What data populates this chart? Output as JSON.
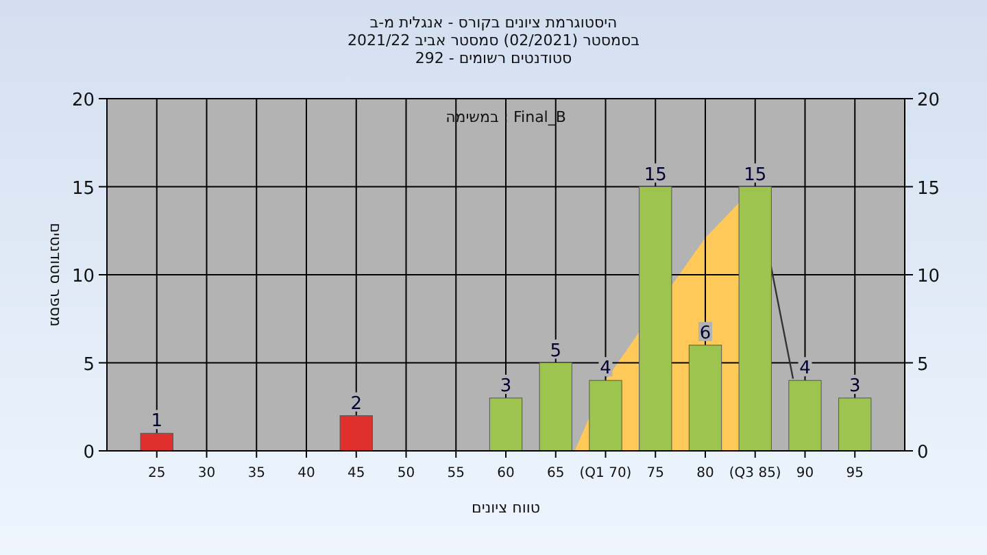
{
  "chart_data": {
    "type": "bar",
    "title": "היסטוגרמת ציונים בקורס - אנגלית מ-ב",
    "subtitle": "בסמסטר  (02/2021)  סמסטר אביב 2021/22\nסטודנטים רשומים - 292",
    "xlabel": "טווח ציונים",
    "ylabel": "מספר סטודנטים",
    "annotations": [
      "במשימה : Final_B"
    ],
    "series": [
      {
        "type": "area",
        "color": "#ffc95a",
        "x": [
          66.9,
          70,
          76.5,
          80,
          83.4,
          85
        ],
        "values": [
          0,
          4,
          9.3,
          12.1,
          14.1,
          15
        ]
      },
      {
        "type": "line",
        "color": "#333333",
        "x": [
          86.3,
          88.8
        ],
        "values": [
          11.3,
          4.1
        ]
      },
      {
        "x": [
          25,
          45,
          60,
          65,
          70,
          75,
          80,
          85,
          90,
          95
        ],
        "values": [
          1,
          2,
          3,
          5,
          4,
          15,
          6,
          15,
          4,
          3
        ],
        "colors": [
          "#e0302e",
          "#e0302e",
          "#9cc44e",
          "#9cc44e",
          "#9cc44e",
          "#9cc44e",
          "#9cc44e",
          "#9cc44e",
          "#9cc44e",
          "#9cc44e"
        ],
        "value_labels": [
          "1",
          "2",
          "3",
          "5",
          "4",
          "15",
          "6",
          "15",
          "4",
          "3"
        ]
      }
    ],
    "xlim": [
      20,
      100
    ],
    "xticks": [
      25,
      30,
      35,
      40,
      45,
      50,
      55,
      60,
      65,
      {
        "value": 70,
        "label": "(Q1 70)"
      },
      75,
      80,
      {
        "value": 85,
        "label": "(Q3 85)"
      },
      90,
      95
    ],
    "ylim": [
      0,
      20
    ],
    "yticks": [
      0,
      5,
      10,
      15,
      20
    ],
    "y2lim": [
      0,
      20
    ],
    "y2ticks": [
      0,
      5,
      10,
      15,
      20
    ],
    "grid": true
  }
}
